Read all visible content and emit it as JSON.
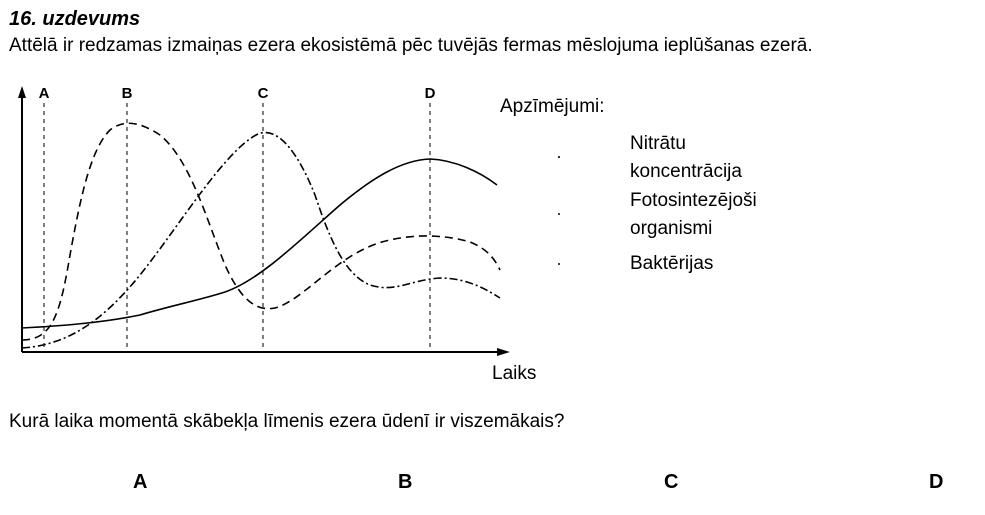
{
  "task": {
    "number": "16. uzdevums",
    "intro": "Attēlā ir redzamas izmaiņas ezera ekosistēmā pēc tuvējās fermas mēslojuma ieplūšanas ezerā."
  },
  "graph": {
    "markers": [
      "A",
      "B",
      "C",
      "D"
    ],
    "x_axis_label": "Laiks"
  },
  "legend": {
    "title": "Apzīmējumi:",
    "items": [
      {
        "line1": "Nitrātu",
        "line2": "koncentrācija",
        "style": "dashed"
      },
      {
        "line1": "Fotosintezējoši",
        "line2": "organismi",
        "style": "dash-dot"
      },
      {
        "line1": "Baktērijas",
        "style": "solid"
      }
    ]
  },
  "question": "Kurā laika momentā skābekļa līmenis ezera ūdenī ir viszemākais?",
  "options": [
    "A",
    "B",
    "C",
    "D"
  ]
}
